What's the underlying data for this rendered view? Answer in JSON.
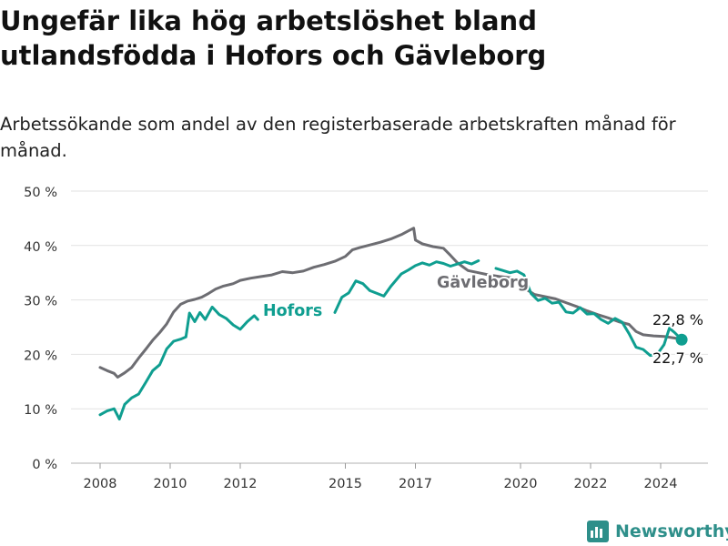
{
  "header": {
    "title": "Ungefär lika hög arbetslöshet bland utlandsfödda i Hofors och Gävleborg",
    "subtitle": "Arbetssökande som andel av den registerbaserade arbetskraften månad för månad."
  },
  "brand": {
    "name": "Newsworthy",
    "icon": "newsworthy-logo-icon",
    "color": "#2e8f8a"
  },
  "chart_data": {
    "type": "line",
    "title": "Ungefär lika hög arbetslöshet bland utlandsfödda i Hofors och Gävleborg",
    "subtitle": "Arbetssökande som andel av den registerbaserade arbetskraften månad för månad.",
    "xlabel": "",
    "ylabel": "",
    "ylim": [
      0,
      50
    ],
    "xlim": [
      2007.9,
      2025.7
    ],
    "y_ticks": [
      0,
      10,
      20,
      30,
      40,
      50
    ],
    "y_tick_labels": [
      "0 %",
      "10 %",
      "20 %",
      "30 %",
      "40 %",
      "50 %"
    ],
    "x_ticks": [
      2008,
      2010,
      2012,
      2015,
      2017,
      2020,
      2022,
      2024
    ],
    "x_tick_labels": [
      "2008",
      "2010",
      "2012",
      "2015",
      "2017",
      "2020",
      "2022",
      "2024"
    ],
    "grid": "horizontal",
    "legend": "direct labels on lines",
    "series": [
      {
        "name": "Gävleborg",
        "color": "#6d6d72",
        "last_value_label": "22,8 %",
        "points": [
          [
            2008.0,
            17.6
          ],
          [
            2008.2,
            17.0
          ],
          [
            2008.4,
            16.5
          ],
          [
            2008.5,
            15.8
          ],
          [
            2008.7,
            16.6
          ],
          [
            2008.9,
            17.6
          ],
          [
            2009.1,
            19.3
          ],
          [
            2009.3,
            20.9
          ],
          [
            2009.5,
            22.6
          ],
          [
            2009.7,
            24.0
          ],
          [
            2009.9,
            25.6
          ],
          [
            2010.1,
            27.8
          ],
          [
            2010.3,
            29.2
          ],
          [
            2010.5,
            29.8
          ],
          [
            2010.7,
            30.1
          ],
          [
            2010.9,
            30.5
          ],
          [
            2011.1,
            31.2
          ],
          [
            2011.3,
            32.0
          ],
          [
            2011.5,
            32.5
          ],
          [
            2011.8,
            33.0
          ],
          [
            2012.0,
            33.6
          ],
          [
            2012.3,
            34.0
          ],
          [
            2012.6,
            34.3
          ],
          [
            2012.9,
            34.6
          ],
          [
            2013.2,
            35.2
          ],
          [
            2013.5,
            35.0
          ],
          [
            2013.8,
            35.3
          ],
          [
            2014.1,
            36.0
          ],
          [
            2014.4,
            36.5
          ],
          [
            2014.7,
            37.1
          ],
          [
            2015.0,
            38.0
          ],
          [
            2015.2,
            39.2
          ],
          [
            2015.4,
            39.6
          ],
          [
            2015.7,
            40.1
          ],
          [
            2016.0,
            40.6
          ],
          [
            2016.3,
            41.2
          ],
          [
            2016.6,
            42.0
          ],
          [
            2016.8,
            42.7
          ],
          [
            2016.95,
            43.2
          ],
          [
            2017.0,
            41.0
          ],
          [
            2017.2,
            40.3
          ],
          [
            2017.5,
            39.8
          ],
          [
            2017.8,
            39.5
          ],
          [
            2018.0,
            38.2
          ],
          [
            2018.2,
            36.8
          ],
          [
            2018.5,
            35.4
          ],
          [
            2018.8,
            35.0
          ],
          [
            2019.1,
            34.6
          ],
          [
            2019.4,
            34.3
          ],
          [
            2019.7,
            34.1
          ],
          [
            2020.0,
            33.6
          ],
          [
            2020.2,
            31.8
          ],
          [
            2020.4,
            31.0
          ],
          [
            2020.7,
            30.6
          ],
          [
            2021.0,
            30.2
          ],
          [
            2021.3,
            29.5
          ],
          [
            2021.6,
            28.8
          ],
          [
            2021.9,
            28.0
          ],
          [
            2022.2,
            27.3
          ],
          [
            2022.5,
            26.7
          ],
          [
            2022.8,
            26.0
          ],
          [
            2023.1,
            25.5
          ],
          [
            2023.3,
            24.2
          ],
          [
            2023.5,
            23.6
          ],
          [
            2023.8,
            23.4
          ],
          [
            2024.1,
            23.3
          ],
          [
            2024.4,
            23.0
          ],
          [
            2024.6,
            22.8
          ]
        ]
      },
      {
        "name": "Hofors",
        "color": "#0f9e90",
        "last_value_label": "22,7 %",
        "segments": [
          [
            [
              2008.0,
              8.9
            ],
            [
              2008.2,
              9.6
            ],
            [
              2008.4,
              10.0
            ],
            [
              2008.55,
              8.1
            ],
            [
              2008.7,
              10.8
            ],
            [
              2008.9,
              12.0
            ],
            [
              2009.1,
              12.7
            ],
            [
              2009.3,
              14.8
            ],
            [
              2009.5,
              17.0
            ],
            [
              2009.7,
              18.1
            ],
            [
              2009.9,
              21.0
            ],
            [
              2010.1,
              22.4
            ],
            [
              2010.3,
              22.8
            ],
            [
              2010.45,
              23.2
            ],
            [
              2010.55,
              27.6
            ],
            [
              2010.7,
              26.0
            ],
            [
              2010.85,
              27.7
            ],
            [
              2011.0,
              26.4
            ],
            [
              2011.2,
              28.7
            ],
            [
              2011.4,
              27.3
            ],
            [
              2011.6,
              26.6
            ],
            [
              2011.8,
              25.4
            ],
            [
              2012.0,
              24.6
            ],
            [
              2012.2,
              26.0
            ],
            [
              2012.4,
              27.1
            ],
            [
              2012.5,
              26.4
            ]
          ],
          [
            [
              2014.7,
              27.7
            ],
            [
              2014.9,
              30.5
            ],
            [
              2015.1,
              31.3
            ],
            [
              2015.3,
              33.5
            ],
            [
              2015.5,
              33.0
            ],
            [
              2015.7,
              31.7
            ],
            [
              2015.9,
              31.2
            ],
            [
              2016.1,
              30.7
            ],
            [
              2016.3,
              32.5
            ],
            [
              2016.6,
              34.8
            ],
            [
              2016.8,
              35.5
            ],
            [
              2017.0,
              36.3
            ],
            [
              2017.2,
              36.8
            ],
            [
              2017.4,
              36.4
            ],
            [
              2017.6,
              37.0
            ],
            [
              2017.8,
              36.7
            ],
            [
              2018.0,
              36.2
            ],
            [
              2018.2,
              36.6
            ],
            [
              2018.4,
              37.0
            ],
            [
              2018.6,
              36.6
            ],
            [
              2018.8,
              37.2
            ]
          ],
          [
            [
              2019.3,
              35.8
            ],
            [
              2019.5,
              35.4
            ],
            [
              2019.7,
              35.0
            ],
            [
              2019.9,
              35.3
            ],
            [
              2020.1,
              34.6
            ],
            [
              2020.3,
              31.2
            ],
            [
              2020.5,
              29.9
            ],
            [
              2020.7,
              30.3
            ],
            [
              2020.9,
              29.4
            ],
            [
              2021.1,
              29.6
            ],
            [
              2021.3,
              27.8
            ],
            [
              2021.5,
              27.6
            ],
            [
              2021.7,
              28.6
            ],
            [
              2021.9,
              27.4
            ],
            [
              2022.1,
              27.5
            ],
            [
              2022.3,
              26.4
            ],
            [
              2022.5,
              25.7
            ],
            [
              2022.7,
              26.6
            ],
            [
              2022.9,
              25.9
            ],
            [
              2023.1,
              23.8
            ],
            [
              2023.3,
              21.3
            ],
            [
              2023.5,
              20.9
            ],
            [
              2023.7,
              19.8
            ],
            [
              2023.9,
              20.0
            ],
            [
              2024.1,
              21.8
            ],
            [
              2024.25,
              24.8
            ],
            [
              2024.4,
              24.0
            ],
            [
              2024.6,
              22.7
            ]
          ]
        ]
      }
    ],
    "annotations": [
      {
        "text": "Hofors",
        "series": "Hofors",
        "anchor_x": 2013.6,
        "anchor_y": 27.8
      },
      {
        "text": "Gävleborg",
        "series": "Gävleborg",
        "anchor_x": 2019.0,
        "anchor_y": 33.4
      },
      {
        "text": "22,8 %",
        "series": "Gävleborg",
        "anchor_x": 2024.6,
        "anchor_y": 22.8,
        "position": "above"
      },
      {
        "text": "22,7 %",
        "series": "Hofors",
        "anchor_x": 2024.6,
        "anchor_y": 22.7,
        "position": "below"
      }
    ]
  }
}
